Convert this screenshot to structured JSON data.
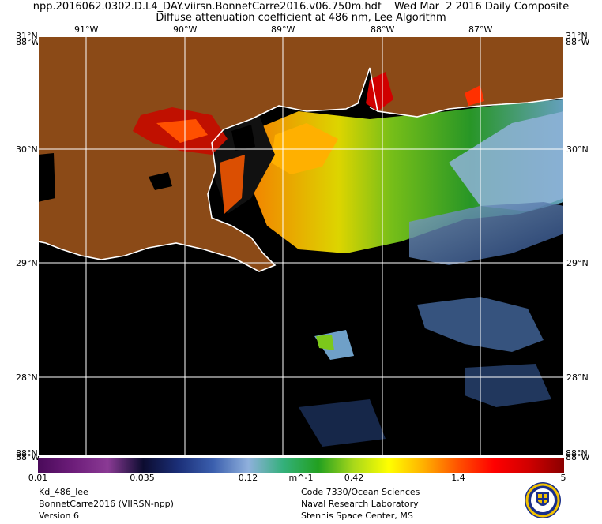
{
  "header": {
    "line1": "npp.2016062.0302.D.L4_DAY.viirsn.BonnetCarre2016.v06.750m.hdf    Wed Mar  2 2016 Daily Composite",
    "line2": "Diffuse attenuation coefficient at 486 nm, Lee Algorithm"
  },
  "map": {
    "lon_labels": [
      "91°W",
      "90°W",
      "89°W",
      "88°W",
      "87°W"
    ],
    "lat_labels": [
      "31°N",
      "30°N",
      "29°N",
      "28°N"
    ],
    "corner_top_left_a": "31°N",
    "corner_top_left_b": "88°W",
    "corner_top_right_a": "31°N",
    "corner_top_right_b": "88°W",
    "corner_bottom_left_a": "88°N",
    "corner_bottom_left_b": "88°W",
    "corner_bottom_right_a": "88°N",
    "corner_bottom_right_b": "88°W",
    "colors": {
      "land": "#8b4a17",
      "water": "#000000",
      "coast": "#ffffff",
      "grid": "#ffffff"
    }
  },
  "colorbar": {
    "ticks": [
      "0.01",
      "0.035",
      "0.12",
      "m^-1",
      "0.42",
      "1.4",
      "5"
    ],
    "stops": [
      "#4a0a5a",
      "#6d1d7a",
      "#8a3a94",
      "#0c0c30",
      "#1b2f78",
      "#3b5fae",
      "#8fb0dc",
      "#33b07a",
      "#22a020",
      "#a8d81a",
      "#ffff00",
      "#ffb000",
      "#ff5000",
      "#ff0000",
      "#d00000",
      "#8a0000"
    ]
  },
  "footer": {
    "left": [
      "Kd_486_lee",
      "BonnetCarre2016 (VIIRSN-npp)",
      "Version 6"
    ],
    "right": [
      "Code 7330/Ocean Sciences",
      "Naval Research Laboratory",
      "Stennis Space Center, MS"
    ]
  },
  "logo": "nrl-seal-icon"
}
